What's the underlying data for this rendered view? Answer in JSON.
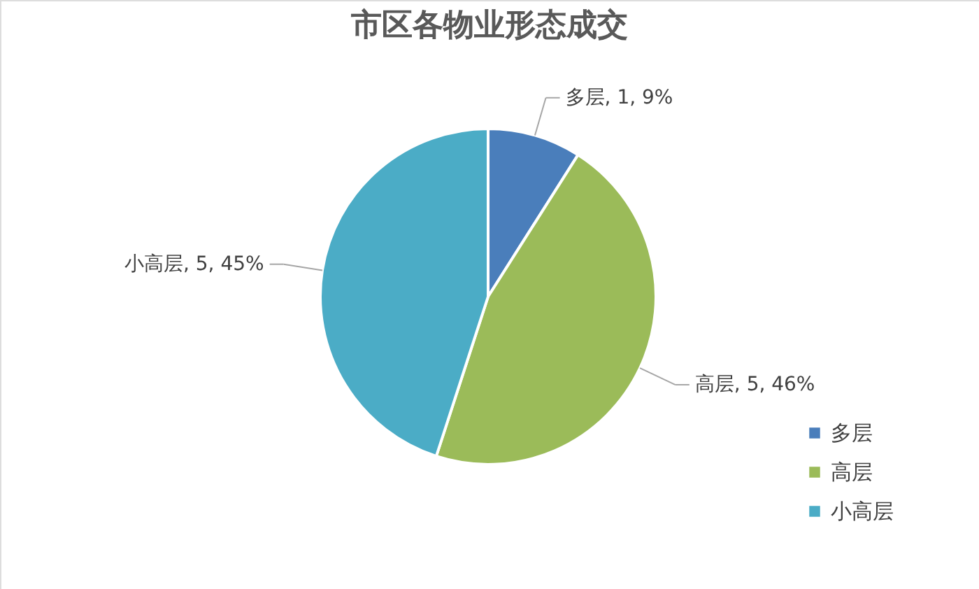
{
  "chart_data": {
    "type": "pie",
    "title": "市区各物业形态成交",
    "categories": [
      "多层",
      "高层",
      "小高层"
    ],
    "values": [
      9,
      46,
      45
    ],
    "colors": [
      "#4a7ebb",
      "#9bbb59",
      "#4bacc6"
    ],
    "value_labels": [
      "多层, 1, 9%",
      "高层, 5, 46%",
      "小高层, 5, 45%"
    ],
    "legend": "right"
  }
}
